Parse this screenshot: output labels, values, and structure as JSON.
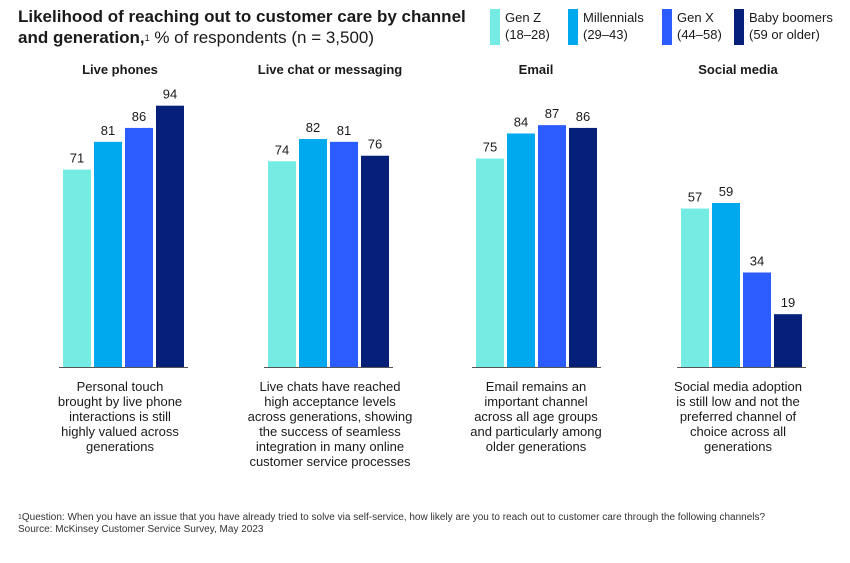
{
  "title": {
    "bold_text": "Likelihood of reaching out to customer care by channel and generation,",
    "footnote_marker": "1",
    "subtitle": "% of respondents (n = 3,500)"
  },
  "legend": [
    {
      "name": "Gen Z",
      "range": "(18–28)",
      "color": "#74ece4"
    },
    {
      "name": "Millennials",
      "range": "(29–43)",
      "color": "#00a8ee"
    },
    {
      "name": "Gen X",
      "range": "(44–58)",
      "color": "#2c5cff"
    },
    {
      "name": "Baby boomers",
      "range": "(59 or older)",
      "color": "#061f79"
    }
  ],
  "chart_data": {
    "type": "bar",
    "series": [
      "Gen Z",
      "Millennials",
      "Gen X",
      "Baby boomers"
    ],
    "groups": [
      {
        "category": "Live phones",
        "values": [
          71,
          81,
          86,
          94
        ],
        "annotation": [
          "Personal touch",
          "brought by live phone",
          "interactions is still",
          "highly valued across",
          "generations"
        ]
      },
      {
        "category": "Live chat or messaging",
        "values": [
          74,
          82,
          81,
          76
        ],
        "annotation": [
          "Live chats have reached",
          "high acceptance levels",
          "across generations, showing",
          "the success of seamless",
          "integration in many online",
          "customer service processes"
        ]
      },
      {
        "category": "Email",
        "values": [
          75,
          84,
          87,
          86
        ],
        "annotation": [
          "Email remains an",
          "important channel",
          "across all age groups",
          "and particularly among",
          "older generations"
        ]
      },
      {
        "category": "Social media",
        "values": [
          57,
          59,
          34,
          19
        ],
        "annotation": [
          "Social media adoption",
          "is still low and not the",
          "preferred channel of",
          "choice across all",
          "generations"
        ]
      }
    ],
    "ylim": [
      0,
      100
    ],
    "grid": false,
    "legend_position": "top-right"
  },
  "footnote": {
    "marker": "1",
    "question": "Question: When you have an issue that you have already tried to solve via self-service, how likely are you to reach out to customer care through the following channels?",
    "source": "Source: McKinsey Customer Service Survey, May 2023"
  }
}
